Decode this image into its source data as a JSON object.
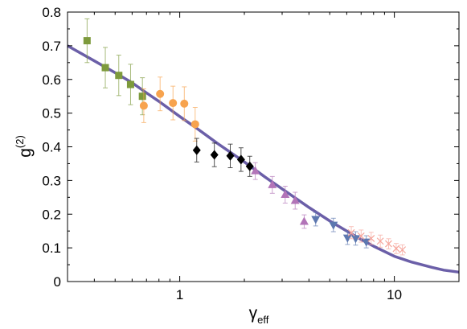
{
  "chart_data": {
    "type": "scatter",
    "xscale": "log",
    "xlim": [
      0.3,
      20
    ],
    "ylim": [
      0,
      0.8
    ],
    "xticks": [
      1,
      10
    ],
    "xtick_labels": [
      "1",
      "10"
    ],
    "yticks": [
      0,
      0.1,
      0.2,
      0.3,
      0.4,
      0.5,
      0.6,
      0.7,
      0.8
    ],
    "ytick_labels": [
      "0",
      "0.1",
      "0.2",
      "0.3",
      "0.4",
      "0.5",
      "0.6",
      "0.7",
      "0.8"
    ],
    "xlabel": {
      "base": "γ",
      "sub": "eff"
    },
    "ylabel": {
      "base": "g",
      "sup": "(2)"
    },
    "grid": false,
    "curve": {
      "color": "#6b5fa8",
      "x": [
        0.3,
        0.4,
        0.5,
        0.6,
        0.7,
        0.8,
        1.0,
        1.2,
        1.5,
        2.0,
        2.5,
        3.0,
        4.0,
        5.0,
        6.0,
        7.0,
        8.0,
        10.0,
        12.0,
        15.0,
        17.0,
        20.0
      ],
      "y": [
        0.7,
        0.655,
        0.62,
        0.59,
        0.56,
        0.535,
        0.49,
        0.455,
        0.41,
        0.355,
        0.31,
        0.275,
        0.22,
        0.18,
        0.15,
        0.125,
        0.105,
        0.075,
        0.058,
        0.042,
        0.034,
        0.028
      ]
    },
    "series": [
      {
        "marker": "square",
        "color": "#7d9a3c",
        "points": [
          {
            "x": 0.37,
            "y": 0.715,
            "err": 0.065
          },
          {
            "x": 0.45,
            "y": 0.635,
            "err": 0.06
          },
          {
            "x": 0.52,
            "y": 0.612,
            "err": 0.06
          },
          {
            "x": 0.59,
            "y": 0.585,
            "err": 0.06
          },
          {
            "x": 0.67,
            "y": 0.55,
            "err": 0.055
          }
        ]
      },
      {
        "marker": "circle",
        "color": "#f7a34e",
        "points": [
          {
            "x": 0.68,
            "y": 0.522,
            "err": 0.05
          },
          {
            "x": 0.81,
            "y": 0.557,
            "err": 0.05
          },
          {
            "x": 0.93,
            "y": 0.53,
            "err": 0.05
          },
          {
            "x": 1.05,
            "y": 0.528,
            "err": 0.05
          },
          {
            "x": 1.18,
            "y": 0.467,
            "err": 0.05
          }
        ]
      },
      {
        "marker": "diamond",
        "color": "#000000",
        "points": [
          {
            "x": 1.2,
            "y": 0.39,
            "err": 0.035
          },
          {
            "x": 1.45,
            "y": 0.376,
            "err": 0.035
          },
          {
            "x": 1.72,
            "y": 0.373,
            "err": 0.035
          },
          {
            "x": 1.93,
            "y": 0.362,
            "err": 0.035
          },
          {
            "x": 2.12,
            "y": 0.342,
            "err": 0.03
          }
        ]
      },
      {
        "marker": "triangle-up",
        "color": "#b274b8",
        "points": [
          {
            "x": 2.25,
            "y": 0.328,
            "err": 0.025
          },
          {
            "x": 2.7,
            "y": 0.287,
            "err": 0.025
          },
          {
            "x": 3.1,
            "y": 0.258,
            "err": 0.025
          },
          {
            "x": 3.45,
            "y": 0.24,
            "err": 0.025
          },
          {
            "x": 3.8,
            "y": 0.178,
            "err": 0.02
          }
        ]
      },
      {
        "marker": "triangle-down",
        "color": "#5d78b0",
        "points": [
          {
            "x": 4.3,
            "y": 0.185,
            "err": 0.02
          },
          {
            "x": 5.2,
            "y": 0.168,
            "err": 0.02
          },
          {
            "x": 6.05,
            "y": 0.13,
            "err": 0.02
          },
          {
            "x": 6.6,
            "y": 0.128,
            "err": 0.02
          },
          {
            "x": 7.4,
            "y": 0.118,
            "err": 0.018
          }
        ]
      },
      {
        "marker": "cross",
        "color": "#f6a49a",
        "points": [
          {
            "x": 6.3,
            "y": 0.145,
            "err": 0.018
          },
          {
            "x": 7.0,
            "y": 0.135,
            "err": 0.018
          },
          {
            "x": 7.8,
            "y": 0.128,
            "err": 0.018
          },
          {
            "x": 8.6,
            "y": 0.12,
            "err": 0.018
          },
          {
            "x": 9.4,
            "y": 0.112,
            "err": 0.015
          },
          {
            "x": 10.2,
            "y": 0.098,
            "err": 0.015
          },
          {
            "x": 10.9,
            "y": 0.094,
            "err": 0.015
          }
        ]
      }
    ]
  }
}
